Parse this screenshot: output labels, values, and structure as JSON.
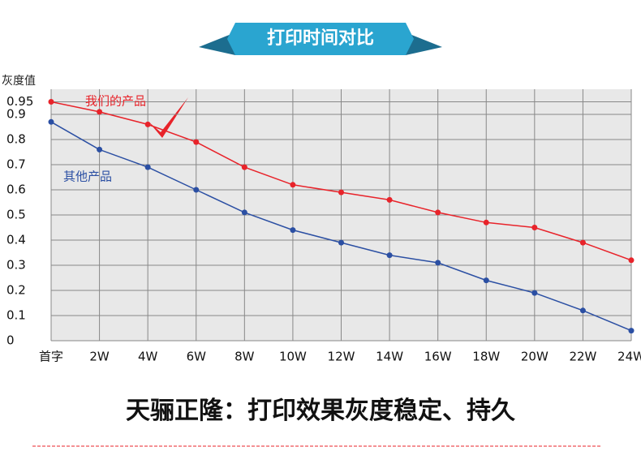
{
  "banner": "打印时间对比",
  "chart_data": {
    "type": "line",
    "y_label": "灰度值",
    "categories": [
      "首字",
      "2W",
      "4W",
      "6W",
      "8W",
      "10W",
      "12W",
      "14W",
      "16W",
      "18W",
      "20W",
      "22W",
      "24W"
    ],
    "series": [
      {
        "name": "我们的产品",
        "color": "#e8232a",
        "values": [
          0.95,
          0.91,
          0.86,
          0.79,
          0.69,
          0.62,
          0.59,
          0.56,
          0.51,
          0.47,
          0.45,
          0.39,
          0.32
        ]
      },
      {
        "name": "其他产品",
        "color": "#2b4fa3",
        "values": [
          0.87,
          0.76,
          0.69,
          0.6,
          0.51,
          0.44,
          0.39,
          0.34,
          0.31,
          0.24,
          0.19,
          0.12,
          0.04
        ]
      }
    ],
    "ylim": [
      0,
      1
    ],
    "yticks": [
      0,
      0.1,
      0.2,
      0.3,
      0.4,
      0.5,
      0.6,
      0.7,
      0.8,
      0.9,
      0.95
    ],
    "grid": true
  },
  "caption": "天骊正隆：打印效果灰度稳定、持久"
}
